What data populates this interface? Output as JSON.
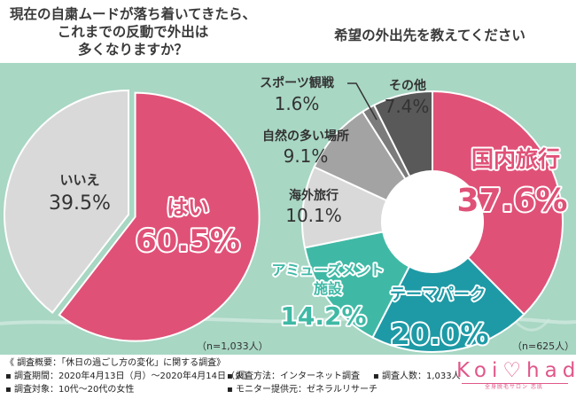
{
  "titles": {
    "left_line1": "現在の自粛ムードが落ち着いてきたら、",
    "left_line2": "これまでの反動で外出は",
    "left_line3": "多くなりますか？",
    "right": "希望の外出先を教えてください"
  },
  "chart_data": [
    {
      "type": "pie",
      "title": "現在の自粛ムードが落ち着いてきたら、これまでの反動で外出は多くなりますか？",
      "categories": [
        "はい",
        "いいえ"
      ],
      "values": [
        60.5,
        39.5
      ],
      "value_labels": [
        "60.5%",
        "39.5%"
      ],
      "colors": [
        "#e05177",
        "#d9d9d9"
      ],
      "sample": "（n=1,033人）"
    },
    {
      "type": "pie",
      "subtype": "donut",
      "title": "希望の外出先を教えてください",
      "categories": [
        "国内旅行",
        "テーマパーク",
        "アミューズメント施設",
        "海外旅行",
        "自然の多い場所",
        "スポーツ観戦",
        "その他"
      ],
      "values": [
        37.6,
        20.0,
        14.2,
        10.1,
        9.1,
        1.6,
        7.4
      ],
      "value_labels": [
        "37.6%",
        "20.0%",
        "14.2%",
        "10.1%",
        "9.1%",
        "1.6%",
        "7.4%"
      ],
      "colors": [
        "#e05177",
        "#1e9aa6",
        "#3fb9a5",
        "#d9d9d9",
        "#a3a3a3",
        "#7b7b7b",
        "#595959"
      ],
      "sample": "（n=625人）"
    }
  ],
  "footer": {
    "heading": "《 調査概要：「休日の過ごし方の変化」に関する調査》",
    "period": "▪ 調査期間：2020年4月13日（月）～2020年4月14日（火）",
    "method": "▪ 調査方法：インターネット調査",
    "count": "▪ 調査人数：1,033人",
    "target": "▪ 調査対象：10代～20代の女性",
    "provider": "▪ モニター提供元：ゼネラルリサーチ"
  },
  "logo": {
    "brand": "Koi♡hada",
    "sub": "全身脱毛サロン 恋肌"
  }
}
